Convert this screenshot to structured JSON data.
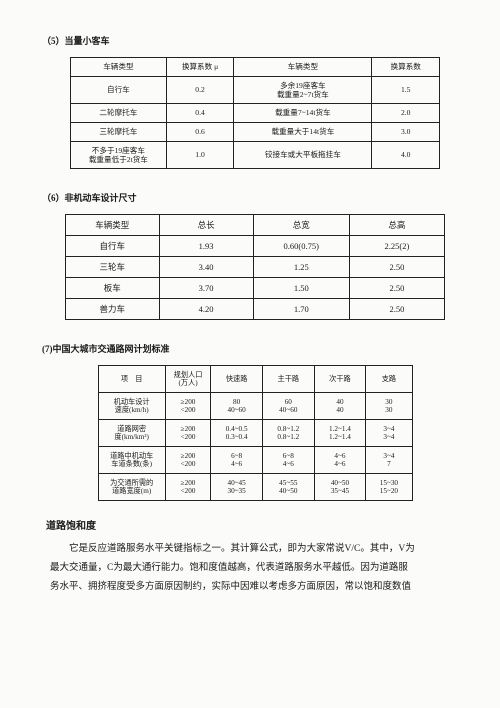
{
  "section5": {
    "title": "（5）当量小客车",
    "headers": [
      "车辆类型",
      "换算系数 μ",
      "车辆类型",
      "换算系数"
    ],
    "rows": [
      [
        "自行车",
        "0.2",
        "多余19座客车\n载重量2~7t货车",
        "1.5"
      ],
      [
        "二轮摩托车",
        "0.4",
        "载重量7~14t货车",
        "2.0"
      ],
      [
        "三轮摩托车",
        "0.6",
        "载重量大于14t货车",
        "3.0"
      ],
      [
        "不多于19座客车\n载重量低于2t货车",
        "1.0",
        "铰接车或大平板拖挂车",
        "4.0"
      ]
    ]
  },
  "section6": {
    "title": "（6）非机动车设计尺寸",
    "headers": [
      "车辆类型",
      "总长",
      "总宽",
      "总高"
    ],
    "rows": [
      [
        "自行车",
        "1.93",
        "0.60(0.75)",
        "2.25(2)"
      ],
      [
        "三轮车",
        "3.40",
        "1.25",
        "2.50"
      ],
      [
        "板车",
        "3.70",
        "1.50",
        "2.50"
      ],
      [
        "兽力车",
        "4.20",
        "1.70",
        "2.50"
      ]
    ]
  },
  "section7": {
    "title": "(7)中国大城市交通路网计划标准",
    "headers": [
      "项　目",
      "规划人口\n(万人)",
      "快速路",
      "主干路",
      "次干路",
      "支路"
    ],
    "rows": [
      [
        "机动车设计\n速度(km/h)",
        "≥200\n<200",
        "80\n40~60",
        "60\n40~60",
        "40\n40",
        "30\n30"
      ],
      [
        "道路网密\n度(km/km²)",
        "≥200\n<200",
        "0.4~0.5\n0.3~0.4",
        "0.8~1.2\n0.8~1.2",
        "1.2~1.4\n1.2~1.4",
        "3~4\n3~4"
      ],
      [
        "道路中机动车\n车道条数(条)",
        "≥200\n<200",
        "6~8\n4~6",
        "6~8\n4~6",
        "4~6\n4~6",
        "3~4\n7"
      ],
      [
        "为交通所需的\n道路宽度(m)",
        "≥200\n<200",
        "40~45\n30~35",
        "45~55\n40~50",
        "40~50\n35~45",
        "15~30\n15~20"
      ]
    ]
  },
  "saturation": {
    "heading": "道路饱和度",
    "p1": "它是反应道路服务水平关键指标之一。其计算公式，即为大家常说V/C。其中，V为",
    "p2": "最大交通量，C为最大通行能力。饱和度值越高，代表道路服务水平越低。因为道路服",
    "p3": "务水平、拥挤程度受多方面原因制约，实际中因难以考虑多方面原因，常以饱和度数值"
  }
}
